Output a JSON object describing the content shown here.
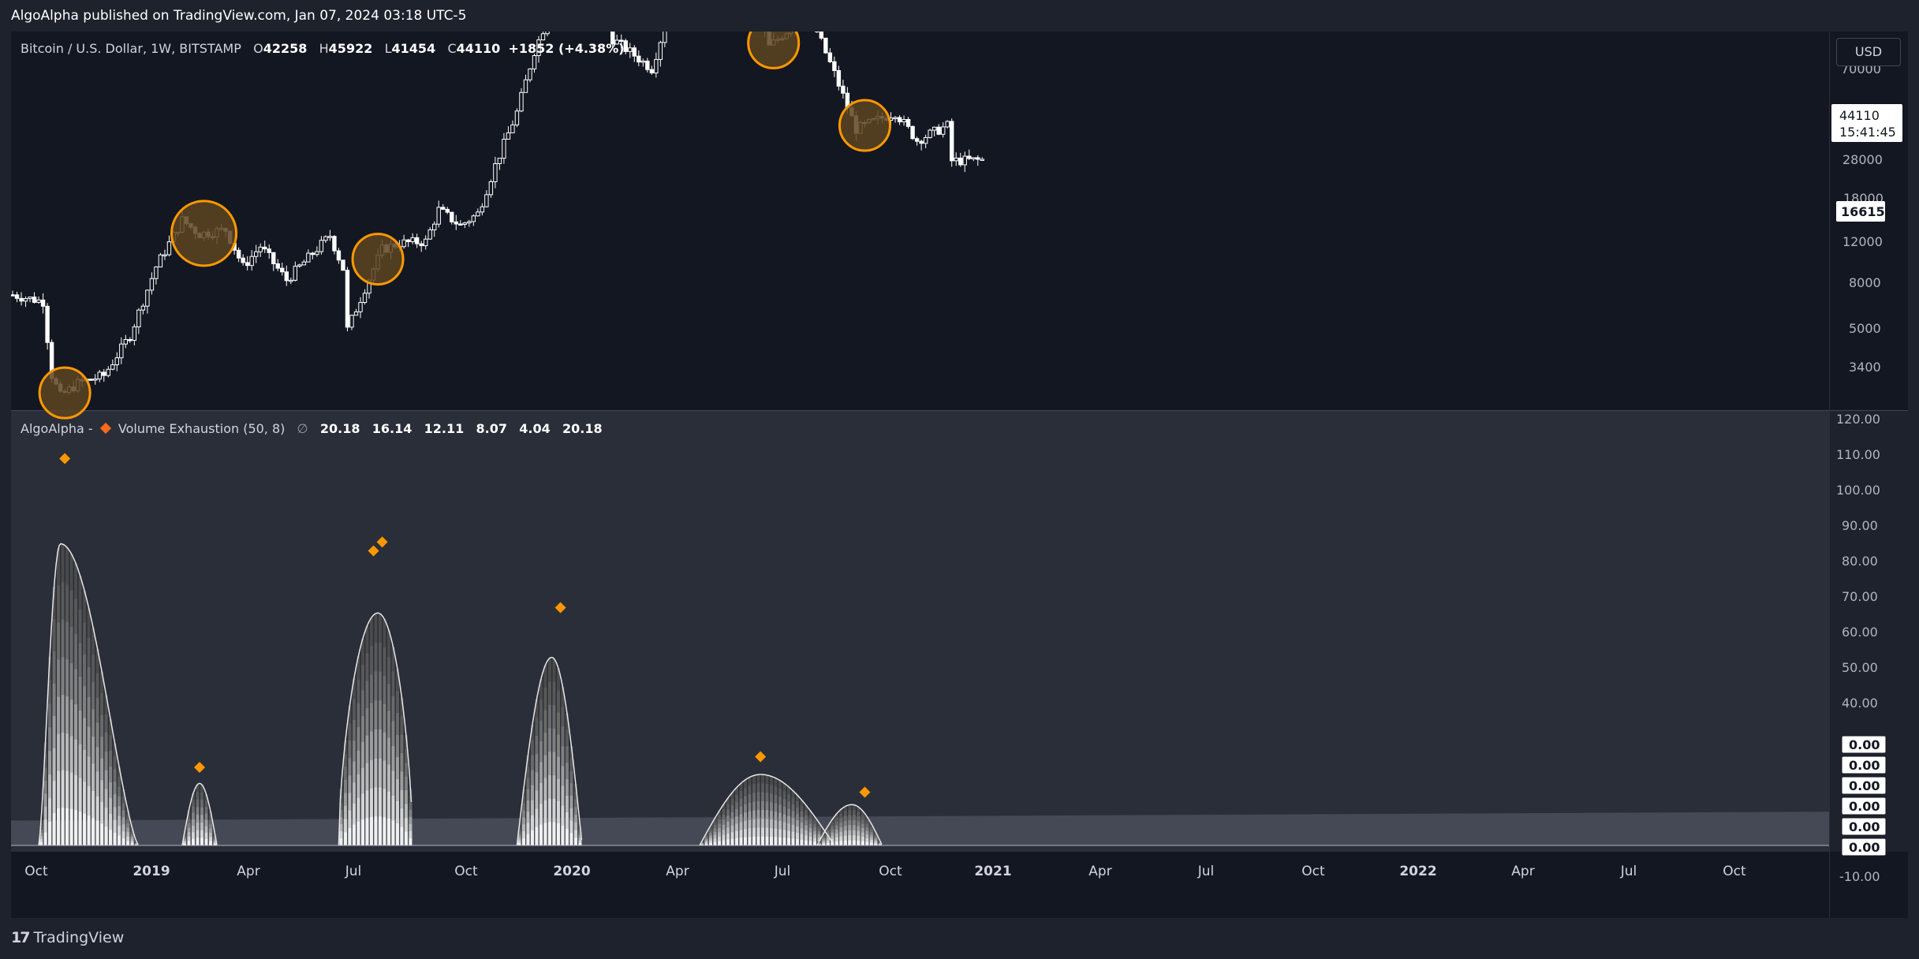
{
  "header": {
    "publisher": "AlgoAlpha published on TradingView.com, Jan 07, 2024 03:18 UTC-5"
  },
  "footer": {
    "logo_mark": "17",
    "brand": "TradingView"
  },
  "currency_button": "USD",
  "price_legend": {
    "symbol": "Bitcoin / U.S. Dollar, 1W, BITSTAMP",
    "o_label": "O",
    "o": "42258",
    "h_label": "H",
    "h": "45922",
    "l_label": "L",
    "l": "41454",
    "c_label": "C",
    "c": "44110",
    "change": "+1852 (+4.38%)"
  },
  "indicator_legend": {
    "author": "AlgoAlpha -",
    "name": "Volume Exhaustion (50, 8)",
    "null_symbol": "∅",
    "values": [
      "20.18",
      "16.14",
      "12.11",
      "8.07",
      "4.04",
      "20.18"
    ]
  },
  "price_axis": {
    "labels": [
      "70000",
      "28000",
      "12000",
      "8000",
      "5000",
      "3400"
    ],
    "last_price": "44110",
    "countdown": "15:41:45",
    "marker_price": "16615",
    "marker_hidden": "18000"
  },
  "indicator_axis": {
    "labels": [
      "120.00",
      "110.00",
      "100.00",
      "90.00",
      "80.00",
      "70.00",
      "60.00",
      "50.00",
      "40.00",
      "-10.00"
    ],
    "value_tags": [
      "0.00",
      "0.00",
      "0.00",
      "0.00",
      "0.00",
      "0.00"
    ]
  },
  "time_axis": [
    "Oct",
    "2019",
    "Apr",
    "Jul",
    "Oct",
    "2020",
    "Apr",
    "Jul",
    "Oct",
    "2021",
    "Apr",
    "Jul",
    "Oct",
    "2022",
    "Apr",
    "Jul",
    "Oct"
  ],
  "colors": {
    "background": "#131722",
    "panel": "#1e222d",
    "indicator_bg": "#2a2e39",
    "candle": "#ffffff",
    "signal": "#ff9800",
    "circle_fill": "#5d4420",
    "threshold_band": "#4a4e5a",
    "legend_diamond": "#ff6a1a"
  },
  "chart_data": [
    {
      "type": "candlestick",
      "title": "Bitcoin / U.S. Dollar, 1W, BITSTAMP",
      "y_scale": "log",
      "x_range": [
        "2018-09-24",
        "2023-01-08"
      ],
      "ylim": [
        2400,
        80000
      ],
      "anchor_prices": [
        [
          "2018-09-24",
          6600
        ],
        [
          "2018-11-12",
          6300
        ],
        [
          "2018-11-26",
          3800
        ],
        [
          "2018-12-10",
          3300
        ],
        [
          "2019-01-07",
          3600
        ],
        [
          "2019-02-18",
          3800
        ],
        [
          "2019-04-01",
          5000
        ],
        [
          "2019-05-13",
          8000
        ],
        [
          "2019-06-24",
          11000
        ],
        [
          "2019-07-22",
          10000
        ],
        [
          "2019-09-02",
          10300
        ],
        [
          "2019-09-30",
          8000
        ],
        [
          "2019-10-28",
          9200
        ],
        [
          "2019-12-09",
          7300
        ],
        [
          "2020-01-13",
          8500
        ],
        [
          "2020-02-17",
          9900
        ],
        [
          "2020-03-09",
          7900
        ],
        [
          "2020-03-16",
          5200
        ],
        [
          "2020-04-13",
          6900
        ],
        [
          "2020-05-11",
          9000
        ],
        [
          "2020-06-08",
          9400
        ],
        [
          "2020-07-20",
          9500
        ],
        [
          "2020-08-10",
          11800
        ],
        [
          "2020-09-14",
          10600
        ],
        [
          "2020-10-12",
          11500
        ],
        [
          "2020-11-09",
          16000
        ],
        [
          "2020-12-14",
          23000
        ],
        [
          "2021-01-11",
          35000
        ],
        [
          "2021-02-08",
          47000
        ],
        [
          "2021-03-08",
          57000
        ],
        [
          "2021-04-12",
          60000
        ],
        [
          "2021-05-17",
          38000
        ],
        [
          "2021-06-21",
          34000
        ],
        [
          "2021-07-19",
          31000
        ],
        [
          "2021-08-16",
          46000
        ],
        [
          "2021-09-20",
          43000
        ],
        [
          "2021-10-18",
          61000
        ],
        [
          "2021-11-08",
          66000
        ],
        [
          "2021-12-06",
          49000
        ],
        [
          "2022-01-10",
          43000
        ],
        [
          "2022-01-24",
          36000
        ],
        [
          "2022-03-28",
          46000
        ],
        [
          "2022-05-09",
          30000
        ],
        [
          "2022-06-13",
          20500
        ],
        [
          "2022-08-15",
          23000
        ],
        [
          "2022-09-19",
          19000
        ],
        [
          "2022-11-07",
          21000
        ],
        [
          "2022-11-14",
          16500
        ],
        [
          "2023-01-08",
          16615
        ]
      ],
      "signals": [
        "2018-12-17",
        "2019-07-29",
        "2020-05-04",
        "2021-02-22",
        "2022-01-31",
        "2022-06-27"
      ]
    },
    {
      "type": "area",
      "title": "Volume Exhaustion (50, 8)",
      "ylim": [
        -10,
        120
      ],
      "threshold": [
        [
          "2018-09-24",
          7.0
        ],
        [
          "2023-01-08",
          9.5
        ]
      ],
      "humps": [
        {
          "start": "2018-11-05",
          "peak": "2018-12-10",
          "end": "2019-04-15",
          "peak_value": 85,
          "profile": "sharp"
        },
        {
          "start": "2019-06-24",
          "peak": "2019-07-22",
          "end": "2019-08-19",
          "peak_value": 17.5
        },
        {
          "start": "2020-03-02",
          "peak": "2020-05-04",
          "end": "2020-06-29",
          "peak_value": 65.5,
          "profile": "plateau"
        },
        {
          "start": "2020-12-14",
          "peak": "2021-02-08",
          "end": "2021-03-29",
          "peak_value": 53
        },
        {
          "start": "2021-10-04",
          "peak": "2022-01-10",
          "end": "2022-05-09",
          "peak_value": 20
        },
        {
          "start": "2022-04-11",
          "peak": "2022-06-06",
          "end": "2022-07-25",
          "peak_value": 11.5
        }
      ],
      "signal_markers": [
        [
          "2018-12-17",
          109
        ],
        [
          "2019-07-22",
          22
        ],
        [
          "2020-04-27",
          83
        ],
        [
          "2020-05-11",
          85.5
        ],
        [
          "2021-02-22",
          67
        ],
        [
          "2022-01-10",
          25
        ],
        [
          "2022-06-27",
          15
        ]
      ]
    }
  ]
}
